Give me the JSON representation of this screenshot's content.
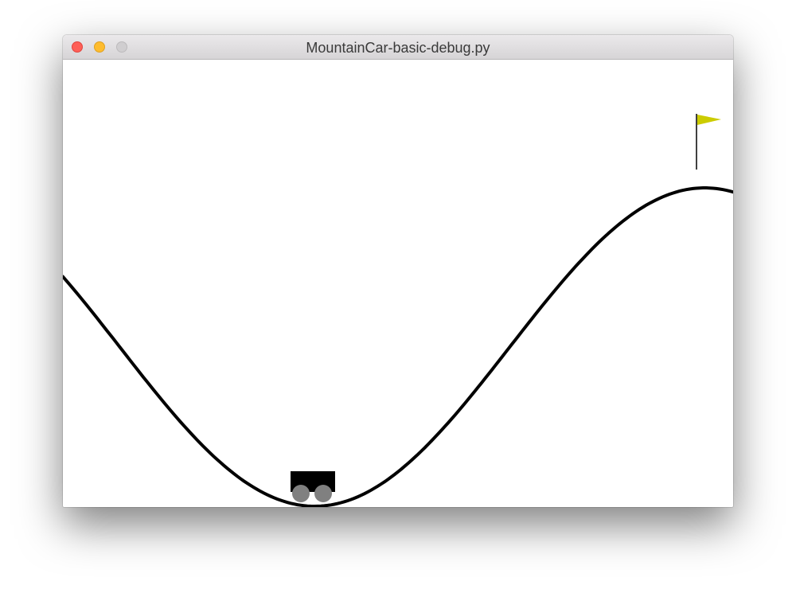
{
  "window": {
    "title": "MountainCar-basic-debug.py",
    "buttons": {
      "close": "close",
      "minimize": "minimize",
      "zoom": "zoom"
    }
  },
  "scene": {
    "track_color": "#000000",
    "car_color": "#000000",
    "wheel_color": "#808080",
    "flag_color": "#cccc00",
    "flagpole_color": "#000000"
  }
}
